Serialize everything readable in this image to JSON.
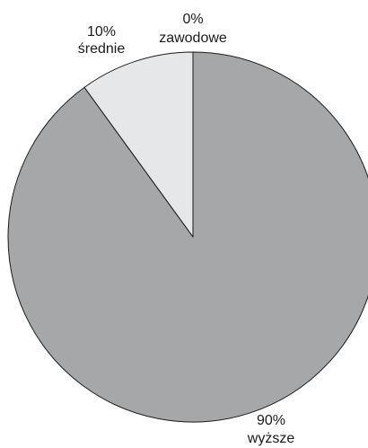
{
  "chart_data": {
    "type": "pie",
    "categories": [
      "zawodowe",
      "średnie",
      "wyższe"
    ],
    "values": [
      0,
      10,
      90
    ],
    "value_labels": [
      "0%",
      "10%",
      "90%"
    ],
    "colors": [
      "#e8e8e8",
      "#e6e7e8",
      "#a6a7a9"
    ],
    "stroke_color": "#1a1a1a"
  }
}
